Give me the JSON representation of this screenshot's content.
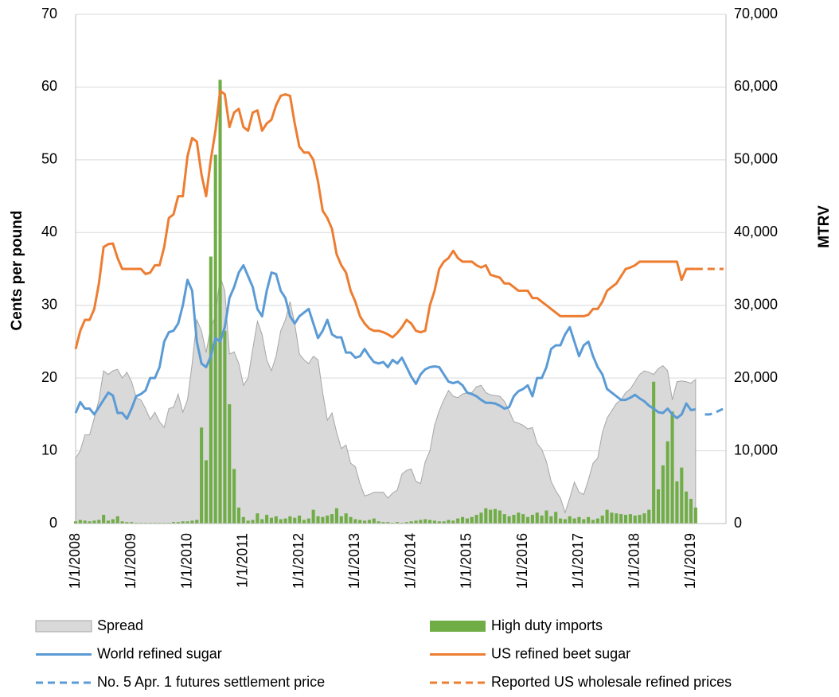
{
  "chart_data": {
    "type": "combo",
    "y_label": "Cents per pound",
    "y2_label": "MTRV",
    "ylim": [
      0,
      70
    ],
    "yticks": [
      0,
      10,
      20,
      30,
      40,
      50,
      60,
      70
    ],
    "y2lim": [
      0,
      70000
    ],
    "y2ticks": [
      0,
      {
        "value": 10000,
        "label": "10,000"
      },
      {
        "value": 20000,
        "label": "20,000"
      },
      {
        "value": 30000,
        "label": "30,000"
      },
      {
        "value": 40000,
        "label": "40,000"
      },
      {
        "value": 50000,
        "label": "50,000"
      },
      {
        "value": 60000,
        "label": "60,000"
      },
      {
        "value": 70000,
        "label": "70,000"
      }
    ],
    "grid": true,
    "legend": "bottom",
    "categories": [
      "1/1/2008",
      null,
      null,
      null,
      null,
      null,
      null,
      null,
      null,
      null,
      null,
      null,
      "1/1/2009",
      null,
      null,
      null,
      null,
      null,
      null,
      null,
      null,
      null,
      null,
      null,
      "1/1/2010",
      null,
      null,
      null,
      null,
      null,
      null,
      null,
      null,
      null,
      null,
      null,
      "1/1/2011",
      null,
      null,
      null,
      null,
      null,
      null,
      null,
      null,
      null,
      null,
      null,
      "1/1/2012",
      null,
      null,
      null,
      null,
      null,
      null,
      null,
      null,
      null,
      null,
      null,
      "1/1/2013",
      null,
      null,
      null,
      null,
      null,
      null,
      null,
      null,
      null,
      null,
      null,
      "1/1/2014",
      null,
      null,
      null,
      null,
      null,
      null,
      null,
      null,
      null,
      null,
      null,
      "1/1/2015",
      null,
      null,
      null,
      null,
      null,
      null,
      null,
      null,
      null,
      null,
      null,
      "1/1/2016",
      null,
      null,
      null,
      null,
      null,
      null,
      null,
      null,
      null,
      null,
      null,
      "1/1/2017",
      null,
      null,
      null,
      null,
      null,
      null,
      null,
      null,
      null,
      null,
      null,
      "1/1/2018",
      null,
      null,
      null,
      null,
      null,
      null,
      null,
      null,
      null,
      null,
      null,
      "1/1/2019",
      null,
      null,
      null,
      null,
      null,
      null,
      null
    ],
    "series": [
      {
        "name": "Spread",
        "type": "area",
        "color": "#d9d9d9",
        "values": [
          9,
          10,
          12.2,
          12.2,
          14.5,
          17,
          21,
          20.5,
          21,
          21.2,
          20,
          20.8,
          19.5,
          17.3,
          17,
          15.8,
          14.3,
          15.3,
          14,
          13.2,
          15.8,
          16,
          17.8,
          15.3,
          17,
          22,
          28,
          26.5,
          23.5,
          27,
          28.5,
          34,
          32,
          23.3,
          23.6,
          22,
          19,
          20,
          24,
          27.8,
          26,
          22.5,
          21,
          23,
          26.5,
          28,
          30.5,
          27.5,
          23.3,
          22.5,
          22,
          23,
          22.5,
          18,
          14.2,
          15.2,
          12.5,
          10.3,
          10.8,
          8.3,
          7.8,
          5.5,
          3.8,
          4,
          4.3,
          4.3,
          4.3,
          3.5,
          4.2,
          4.6,
          6.8,
          7.3,
          7.5,
          5.8,
          5.5,
          8.5,
          10,
          13.5,
          15.5,
          17,
          18.3,
          17.5,
          17.3,
          17.8,
          18,
          18,
          18.8,
          19,
          18,
          17.7,
          17.6,
          17.5,
          16.8,
          15.5,
          14,
          13.8,
          13.5,
          13,
          13.2,
          11,
          10.2,
          8.5,
          5.8,
          4.5,
          3.5,
          1.5,
          3.5,
          5.7,
          4.3,
          4,
          6,
          8.3,
          9,
          12.5,
          14.5,
          15.5,
          16.5,
          17,
          18,
          18.5,
          19.5,
          20.5,
          21,
          20.8,
          20.5,
          21.3,
          21.7,
          21,
          17,
          19.5,
          19.6,
          19.5,
          19.3,
          19.8,
          null,
          null,
          null,
          null,
          null,
          null
        ]
      },
      {
        "name": "High duty imports",
        "type": "bar",
        "axis": "y2",
        "color": "#70ad47",
        "values": [
          300,
          500,
          400,
          300,
          400,
          500,
          1200,
          400,
          600,
          1000,
          300,
          200,
          200,
          100,
          100,
          100,
          100,
          100,
          100,
          100,
          100,
          200,
          200,
          300,
          300,
          400,
          500,
          13200,
          8700,
          36700,
          50700,
          61000,
          26500,
          16400,
          7500,
          2200,
          900,
          400,
          500,
          1400,
          600,
          1200,
          800,
          1000,
          600,
          700,
          1000,
          800,
          1100,
          500,
          700,
          1900,
          1000,
          900,
          1100,
          1300,
          2100,
          1000,
          1400,
          900,
          600,
          500,
          400,
          500,
          700,
          300,
          200,
          200,
          100,
          200,
          100,
          200,
          300,
          400,
          500,
          600,
          500,
          400,
          300,
          300,
          500,
          400,
          700,
          900,
          700,
          900,
          1200,
          1500,
          2100,
          1900,
          2000,
          1800,
          1300,
          1000,
          1200,
          1500,
          1300,
          900,
          1200,
          1500,
          1100,
          1800,
          1000,
          1600,
          700,
          600,
          1000,
          700,
          900,
          600,
          900,
          500,
          700,
          1100,
          1900,
          1500,
          1400,
          1300,
          1200,
          1300,
          1100,
          1200,
          1400,
          1900,
          19500,
          4700,
          8000,
          11300,
          15400,
          5800,
          7700,
          4400,
          3400,
          2200,
          null,
          null,
          null,
          null,
          null,
          null
        ]
      },
      {
        "name": "World refined sugar",
        "type": "line",
        "color": "#5b9bd5",
        "values": [
          15.2,
          16.7,
          15.8,
          15.8,
          15,
          16,
          17,
          18,
          17.6,
          15.2,
          15.2,
          14.4,
          15.8,
          17.5,
          17.8,
          18.3,
          20,
          20,
          21.5,
          25,
          26.3,
          26.5,
          27.5,
          30,
          33.5,
          32,
          25,
          22,
          21.5,
          23,
          25.5,
          25,
          27,
          31,
          32.5,
          34.5,
          35.5,
          34,
          32.5,
          29.5,
          28.5,
          32,
          34.5,
          34.3,
          32,
          31,
          28.5,
          27.5,
          28.5,
          29,
          29.5,
          27.5,
          25.5,
          26.5,
          28,
          26,
          25.6,
          25.6,
          23.5,
          23.5,
          22.8,
          23,
          24,
          23,
          22.2,
          22,
          22.2,
          21.5,
          22.5,
          22,
          22.8,
          21.5,
          20.2,
          19.2,
          20.5,
          21.2,
          21.5,
          21.6,
          21.5,
          20.5,
          19.5,
          19.3,
          19.5,
          19,
          18,
          17.8,
          17.5,
          17,
          16.6,
          16.6,
          16.5,
          16.2,
          15.8,
          16,
          17.5,
          18.2,
          18.5,
          19,
          17.5,
          20,
          20,
          21.5,
          24,
          24.5,
          24.5,
          26,
          27,
          25,
          23,
          24.5,
          25,
          23,
          21.5,
          20.5,
          18.5,
          18,
          17.5,
          17,
          17,
          17.3,
          17.7,
          17.2,
          16.8,
          16.2,
          15.8,
          15.3,
          15.2,
          15.8,
          15,
          14.5,
          15,
          16.5,
          15.6,
          15.7,
          null,
          null,
          null,
          null,
          null,
          null
        ]
      },
      {
        "name": "US refined beet sugar",
        "type": "line",
        "color": "#ed7d31",
        "values": [
          24,
          26.5,
          28,
          28,
          29.5,
          33,
          38,
          38.4,
          38.5,
          36.5,
          35,
          35,
          35,
          35,
          35,
          34.3,
          34.5,
          35.5,
          35.5,
          38,
          42,
          42.5,
          45,
          45,
          50.5,
          53,
          52.5,
          48,
          45,
          50,
          54,
          59.5,
          59,
          54.5,
          56.5,
          57,
          54.5,
          54,
          56.5,
          56.8,
          54,
          55,
          55.5,
          57.5,
          58.8,
          59,
          58.8,
          55,
          51.8,
          51,
          51,
          50,
          47,
          43,
          42,
          40.5,
          37,
          35.5,
          34.5,
          32,
          30.5,
          28.5,
          27.5,
          26.8,
          26.5,
          26.5,
          26.3,
          26,
          25.6,
          26.2,
          27,
          28,
          27.5,
          26.5,
          26.3,
          26.5,
          30,
          32,
          35,
          36,
          36.5,
          37.5,
          36.5,
          36,
          36,
          36,
          35.5,
          35.2,
          35.5,
          34.2,
          34,
          33.8,
          33,
          33,
          32.5,
          32,
          32,
          32,
          31,
          31,
          30.5,
          30,
          29.5,
          29,
          28.5,
          28.5,
          28.5,
          28.5,
          28.5,
          28.5,
          28.7,
          29.5,
          29.5,
          30.5,
          32,
          32.5,
          33,
          34,
          35,
          35.2,
          35.5,
          36,
          36,
          36,
          36,
          36,
          36,
          36,
          36,
          36,
          33.5,
          35,
          35,
          35,
          null,
          null,
          null,
          null,
          null,
          null
        ]
      },
      {
        "name": "No. 5 Apr. 1 futures settlement price",
        "type": "line",
        "dashed": true,
        "color": "#5b9bd5",
        "values": [
          null,
          null,
          null,
          null,
          null,
          null,
          null,
          null,
          null,
          null,
          null,
          null,
          null,
          null,
          null,
          null,
          null,
          null,
          null,
          null,
          null,
          null,
          null,
          null,
          null,
          null,
          null,
          null,
          null,
          null,
          null,
          null,
          null,
          null,
          null,
          null,
          null,
          null,
          null,
          null,
          null,
          null,
          null,
          null,
          null,
          null,
          null,
          null,
          null,
          null,
          null,
          null,
          null,
          null,
          null,
          null,
          null,
          null,
          null,
          null,
          null,
          null,
          null,
          null,
          null,
          null,
          null,
          null,
          null,
          null,
          null,
          null,
          null,
          null,
          null,
          null,
          null,
          null,
          null,
          null,
          null,
          null,
          null,
          null,
          null,
          null,
          null,
          null,
          null,
          null,
          null,
          null,
          null,
          null,
          null,
          null,
          null,
          null,
          null,
          null,
          null,
          null,
          null,
          null,
          null,
          null,
          null,
          null,
          null,
          null,
          null,
          null,
          null,
          null,
          null,
          null,
          null,
          null,
          null,
          null,
          null,
          null,
          null,
          null,
          null,
          null,
          null,
          null,
          null,
          null,
          null,
          null,
          null,
          null,
          null,
          15,
          15,
          15.2,
          15.5,
          15.8
        ]
      },
      {
        "name": "Reported US wholesale refined prices",
        "type": "line",
        "dashed": true,
        "color": "#ed7d31",
        "values": [
          null,
          null,
          null,
          null,
          null,
          null,
          null,
          null,
          null,
          null,
          null,
          null,
          null,
          null,
          null,
          null,
          null,
          null,
          null,
          null,
          null,
          null,
          null,
          null,
          null,
          null,
          null,
          null,
          null,
          null,
          null,
          null,
          null,
          null,
          null,
          null,
          null,
          null,
          null,
          null,
          null,
          null,
          null,
          null,
          null,
          null,
          null,
          null,
          null,
          null,
          null,
          null,
          null,
          null,
          null,
          null,
          null,
          null,
          null,
          null,
          null,
          null,
          null,
          null,
          null,
          null,
          null,
          null,
          null,
          null,
          null,
          null,
          null,
          null,
          null,
          null,
          null,
          null,
          null,
          null,
          null,
          null,
          null,
          null,
          null,
          null,
          null,
          null,
          null,
          null,
          null,
          null,
          null,
          null,
          null,
          null,
          null,
          null,
          null,
          null,
          null,
          null,
          null,
          null,
          null,
          null,
          null,
          null,
          null,
          null,
          null,
          null,
          null,
          null,
          null,
          null,
          null,
          null,
          null,
          null,
          null,
          null,
          null,
          null,
          null,
          null,
          null,
          null,
          null,
          null,
          null,
          null,
          null,
          35,
          35,
          35,
          35,
          35,
          35,
          35
        ]
      }
    ]
  }
}
